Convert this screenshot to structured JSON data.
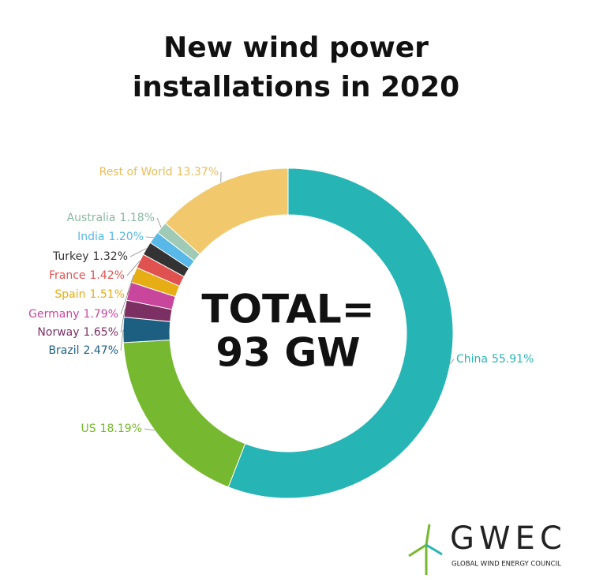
{
  "chart_data": {
    "type": "donut",
    "title": [
      "New wind power",
      "installations in 2020"
    ],
    "center_text": [
      "TOTAL=",
      "93 GW"
    ],
    "categories": [
      "China",
      "US",
      "Brazil",
      "Norway",
      "Germany",
      "Spain",
      "France",
      "Turkey",
      "India",
      "Australia",
      "Rest of World"
    ],
    "values": [
      55.91,
      18.19,
      2.47,
      1.65,
      1.79,
      1.51,
      1.42,
      1.32,
      1.2,
      1.18,
      13.37
    ],
    "value_labels": [
      "55.91%",
      "18.19%",
      "2.47%",
      "1.65%",
      "1.79%",
      "1.51%",
      "1.42%",
      "1.32%",
      "1.20%",
      "1.18%",
      "13.37%"
    ],
    "colors": [
      "#27b4b4",
      "#76b82f",
      "#1c5f80",
      "#7b2f63",
      "#c8469c",
      "#e7ad14",
      "#e0524f",
      "#333333",
      "#58b8e7",
      "#9ecab6",
      "#f1c96c"
    ],
    "logo": {
      "name": "GWEC",
      "subtitle": "GLOBAL WIND ENERGY COUNCIL"
    }
  }
}
